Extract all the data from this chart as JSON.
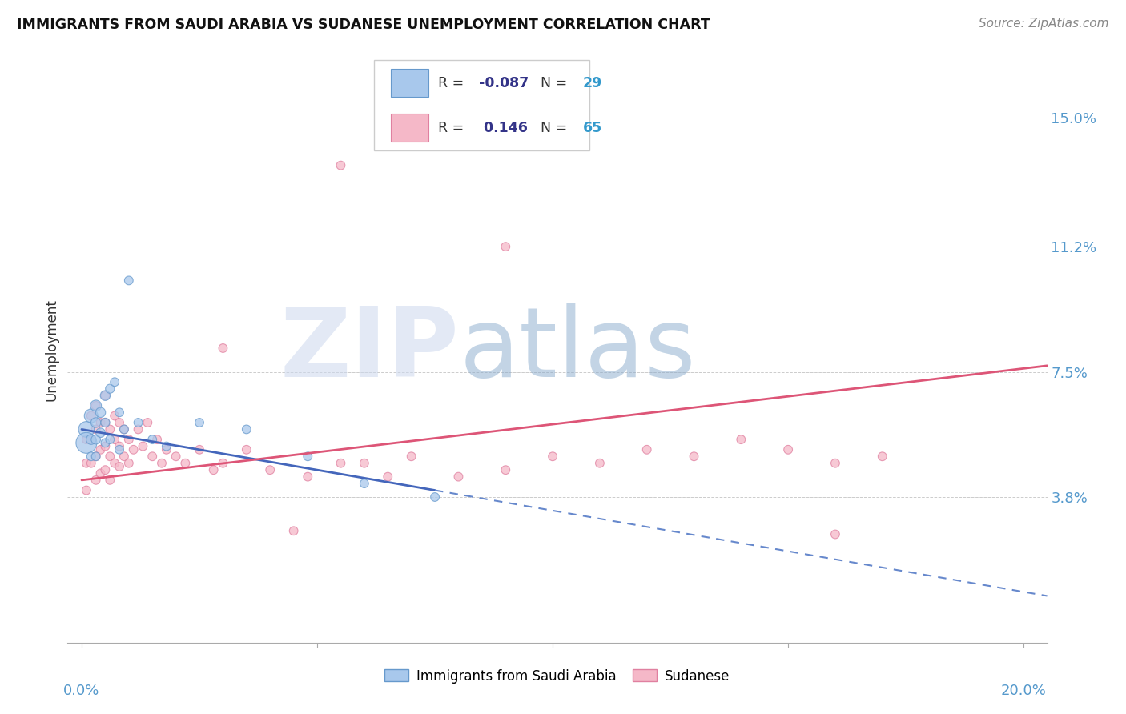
{
  "title": "IMMIGRANTS FROM SAUDI ARABIA VS SUDANESE UNEMPLOYMENT CORRELATION CHART",
  "source": "Source: ZipAtlas.com",
  "ylabel": "Unemployment",
  "ytick_labels": [
    "3.8%",
    "7.5%",
    "11.2%",
    "15.0%"
  ],
  "ytick_values": [
    0.038,
    0.075,
    0.112,
    0.15
  ],
  "xlim": [
    -0.003,
    0.205
  ],
  "ylim": [
    -0.005,
    0.168
  ],
  "color_blue_face": "#A8C8EC",
  "color_blue_edge": "#6699CC",
  "color_pink_face": "#F5B8C8",
  "color_pink_edge": "#E080A0",
  "color_trend_blue_solid": "#4466BB",
  "color_trend_blue_dash": "#6688CC",
  "color_trend_pink": "#DD5577",
  "color_grid": "#CCCCCC",
  "color_axis_label": "#5599CC",
  "watermark_zip_color": "#C8D8EE",
  "watermark_atlas_color": "#88AACC",
  "saudi_x": [
    0.001,
    0.001,
    0.002,
    0.002,
    0.002,
    0.003,
    0.003,
    0.003,
    0.003,
    0.004,
    0.004,
    0.005,
    0.005,
    0.005,
    0.006,
    0.006,
    0.007,
    0.008,
    0.008,
    0.009,
    0.01,
    0.012,
    0.015,
    0.018,
    0.025,
    0.035,
    0.048,
    0.06,
    0.075
  ],
  "saudi_y": [
    0.058,
    0.054,
    0.062,
    0.055,
    0.05,
    0.065,
    0.06,
    0.055,
    0.05,
    0.063,
    0.057,
    0.068,
    0.06,
    0.054,
    0.07,
    0.055,
    0.072,
    0.063,
    0.052,
    0.058,
    0.102,
    0.06,
    0.055,
    0.053,
    0.06,
    0.058,
    0.05,
    0.042,
    0.038
  ],
  "saudi_sizes": [
    200,
    350,
    150,
    80,
    60,
    100,
    80,
    70,
    60,
    80,
    70,
    80,
    65,
    60,
    65,
    60,
    60,
    60,
    60,
    60,
    60,
    60,
    60,
    60,
    60,
    60,
    60,
    60,
    60
  ],
  "sudanese_x": [
    0.001,
    0.001,
    0.001,
    0.002,
    0.002,
    0.002,
    0.003,
    0.003,
    0.003,
    0.003,
    0.004,
    0.004,
    0.004,
    0.005,
    0.005,
    0.005,
    0.005,
    0.006,
    0.006,
    0.006,
    0.007,
    0.007,
    0.007,
    0.008,
    0.008,
    0.008,
    0.009,
    0.009,
    0.01,
    0.01,
    0.011,
    0.012,
    0.013,
    0.014,
    0.015,
    0.016,
    0.017,
    0.018,
    0.02,
    0.022,
    0.025,
    0.028,
    0.03,
    0.035,
    0.04,
    0.048,
    0.055,
    0.06,
    0.065,
    0.07,
    0.08,
    0.09,
    0.1,
    0.11,
    0.12,
    0.13,
    0.14,
    0.15,
    0.16,
    0.17,
    0.055,
    0.09,
    0.16,
    0.03,
    0.045
  ],
  "sudanese_y": [
    0.055,
    0.048,
    0.04,
    0.062,
    0.055,
    0.048,
    0.065,
    0.058,
    0.05,
    0.043,
    0.06,
    0.052,
    0.045,
    0.068,
    0.06,
    0.053,
    0.046,
    0.058,
    0.05,
    0.043,
    0.062,
    0.055,
    0.048,
    0.06,
    0.053,
    0.047,
    0.058,
    0.05,
    0.055,
    0.048,
    0.052,
    0.058,
    0.053,
    0.06,
    0.05,
    0.055,
    0.048,
    0.052,
    0.05,
    0.048,
    0.052,
    0.046,
    0.048,
    0.052,
    0.046,
    0.044,
    0.048,
    0.048,
    0.044,
    0.05,
    0.044,
    0.046,
    0.05,
    0.048,
    0.052,
    0.05,
    0.055,
    0.052,
    0.048,
    0.05,
    0.136,
    0.112,
    0.027,
    0.082,
    0.028
  ],
  "sudanese_sizes": [
    60,
    60,
    60,
    60,
    60,
    60,
    60,
    60,
    60,
    60,
    60,
    60,
    60,
    60,
    60,
    60,
    60,
    60,
    60,
    60,
    60,
    60,
    60,
    60,
    60,
    60,
    60,
    60,
    60,
    60,
    60,
    60,
    60,
    60,
    60,
    60,
    60,
    60,
    60,
    60,
    60,
    60,
    60,
    60,
    60,
    60,
    60,
    60,
    60,
    60,
    60,
    60,
    60,
    60,
    60,
    60,
    60,
    60,
    60,
    60,
    60,
    60,
    60,
    60,
    60
  ],
  "trend_blue_x0": 0.0,
  "trend_blue_y0": 0.058,
  "trend_blue_slope": -0.24,
  "trend_blue_solid_end": 0.075,
  "trend_pink_x0": 0.0,
  "trend_pink_y0": 0.043,
  "trend_pink_slope": 0.165
}
